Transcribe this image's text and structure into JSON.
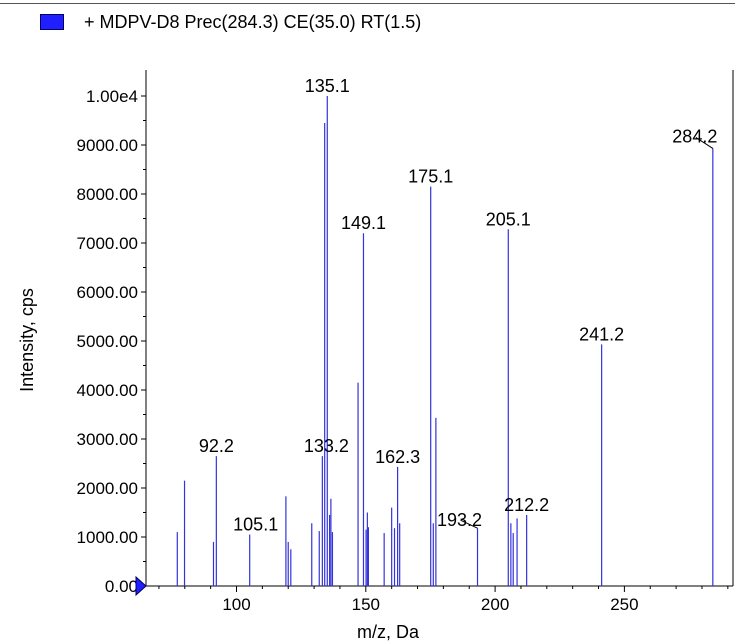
{
  "legend": {
    "label": "+ MDPV-D8 Prec(284.3) CE(35.0) RT(1.5)",
    "color": "#1f1fff"
  },
  "chart_data": {
    "type": "bar",
    "xlabel": "m/z, Da",
    "ylabel": "Intensity, cps",
    "xlim": [
      65,
      292
    ],
    "ylim": [
      0,
      10000
    ],
    "x_ticks": [
      100,
      150,
      200,
      250
    ],
    "y_ticks": [
      {
        "value": 0,
        "label": "0.00"
      },
      {
        "value": 1000,
        "label": "1000.00"
      },
      {
        "value": 2000,
        "label": "2000.00"
      },
      {
        "value": 3000,
        "label": "3000.00"
      },
      {
        "value": 4000,
        "label": "4000.00"
      },
      {
        "value": 5000,
        "label": "5000.00"
      },
      {
        "value": 6000,
        "label": "6000.00"
      },
      {
        "value": 7000,
        "label": "7000.00"
      },
      {
        "value": 8000,
        "label": "8000.00"
      },
      {
        "value": 9000,
        "label": "9000.00"
      },
      {
        "value": 10000,
        "label": "1.00e4"
      }
    ],
    "bar_color": "#3333dd",
    "peaks": [
      {
        "mz": 77.1,
        "intensity": 1100
      },
      {
        "mz": 79.9,
        "intensity": 2150
      },
      {
        "mz": 91.1,
        "intensity": 900
      },
      {
        "mz": 92.2,
        "intensity": 2650
      },
      {
        "mz": 105.1,
        "intensity": 1050
      },
      {
        "mz": 119.1,
        "intensity": 1830
      },
      {
        "mz": 120.0,
        "intensity": 900
      },
      {
        "mz": 121.0,
        "intensity": 750
      },
      {
        "mz": 129.1,
        "intensity": 1280
      },
      {
        "mz": 132.0,
        "intensity": 1120
      },
      {
        "mz": 133.2,
        "intensity": 2650
      },
      {
        "mz": 134.1,
        "intensity": 9450
      },
      {
        "mz": 135.1,
        "intensity": 10000
      },
      {
        "mz": 136.0,
        "intensity": 1450
      },
      {
        "mz": 136.5,
        "intensity": 1780
      },
      {
        "mz": 137.1,
        "intensity": 1100
      },
      {
        "mz": 147.0,
        "intensity": 4150
      },
      {
        "mz": 149.1,
        "intensity": 7200
      },
      {
        "mz": 150.1,
        "intensity": 1150
      },
      {
        "mz": 150.6,
        "intensity": 1500
      },
      {
        "mz": 151.0,
        "intensity": 1200
      },
      {
        "mz": 157.1,
        "intensity": 1080
      },
      {
        "mz": 160.0,
        "intensity": 1600
      },
      {
        "mz": 161.1,
        "intensity": 1180
      },
      {
        "mz": 162.3,
        "intensity": 2430
      },
      {
        "mz": 163.1,
        "intensity": 1280
      },
      {
        "mz": 175.1,
        "intensity": 8150
      },
      {
        "mz": 176.1,
        "intensity": 1280
      },
      {
        "mz": 177.1,
        "intensity": 3430
      },
      {
        "mz": 193.2,
        "intensity": 1180
      },
      {
        "mz": 205.1,
        "intensity": 7280
      },
      {
        "mz": 206.1,
        "intensity": 1280
      },
      {
        "mz": 207.0,
        "intensity": 1080
      },
      {
        "mz": 208.5,
        "intensity": 1380
      },
      {
        "mz": 212.2,
        "intensity": 1450
      },
      {
        "mz": 241.2,
        "intensity": 4930
      },
      {
        "mz": 284.2,
        "intensity": 8930
      }
    ],
    "annotations": [
      {
        "mz": 92.2,
        "intensity": 2650,
        "label": "92.2"
      },
      {
        "mz": 105.1,
        "intensity": 1050,
        "label": "105.1"
      },
      {
        "mz": 133.2,
        "intensity": 2650,
        "label": "133.2"
      },
      {
        "mz": 135.1,
        "intensity": 10000,
        "label": "135.1"
      },
      {
        "mz": 149.1,
        "intensity": 7200,
        "label": "149.1"
      },
      {
        "mz": 162.3,
        "intensity": 2430,
        "label": "162.3"
      },
      {
        "mz": 175.1,
        "intensity": 8150,
        "label": "175.1"
      },
      {
        "mz": 193.2,
        "intensity": 1180,
        "label": "193.2"
      },
      {
        "mz": 205.1,
        "intensity": 7280,
        "label": "205.1"
      },
      {
        "mz": 212.2,
        "intensity": 1450,
        "label": "212.2"
      },
      {
        "mz": 241.2,
        "intensity": 4930,
        "label": "241.2"
      },
      {
        "mz": 284.2,
        "intensity": 8930,
        "label": "284.2"
      }
    ]
  }
}
